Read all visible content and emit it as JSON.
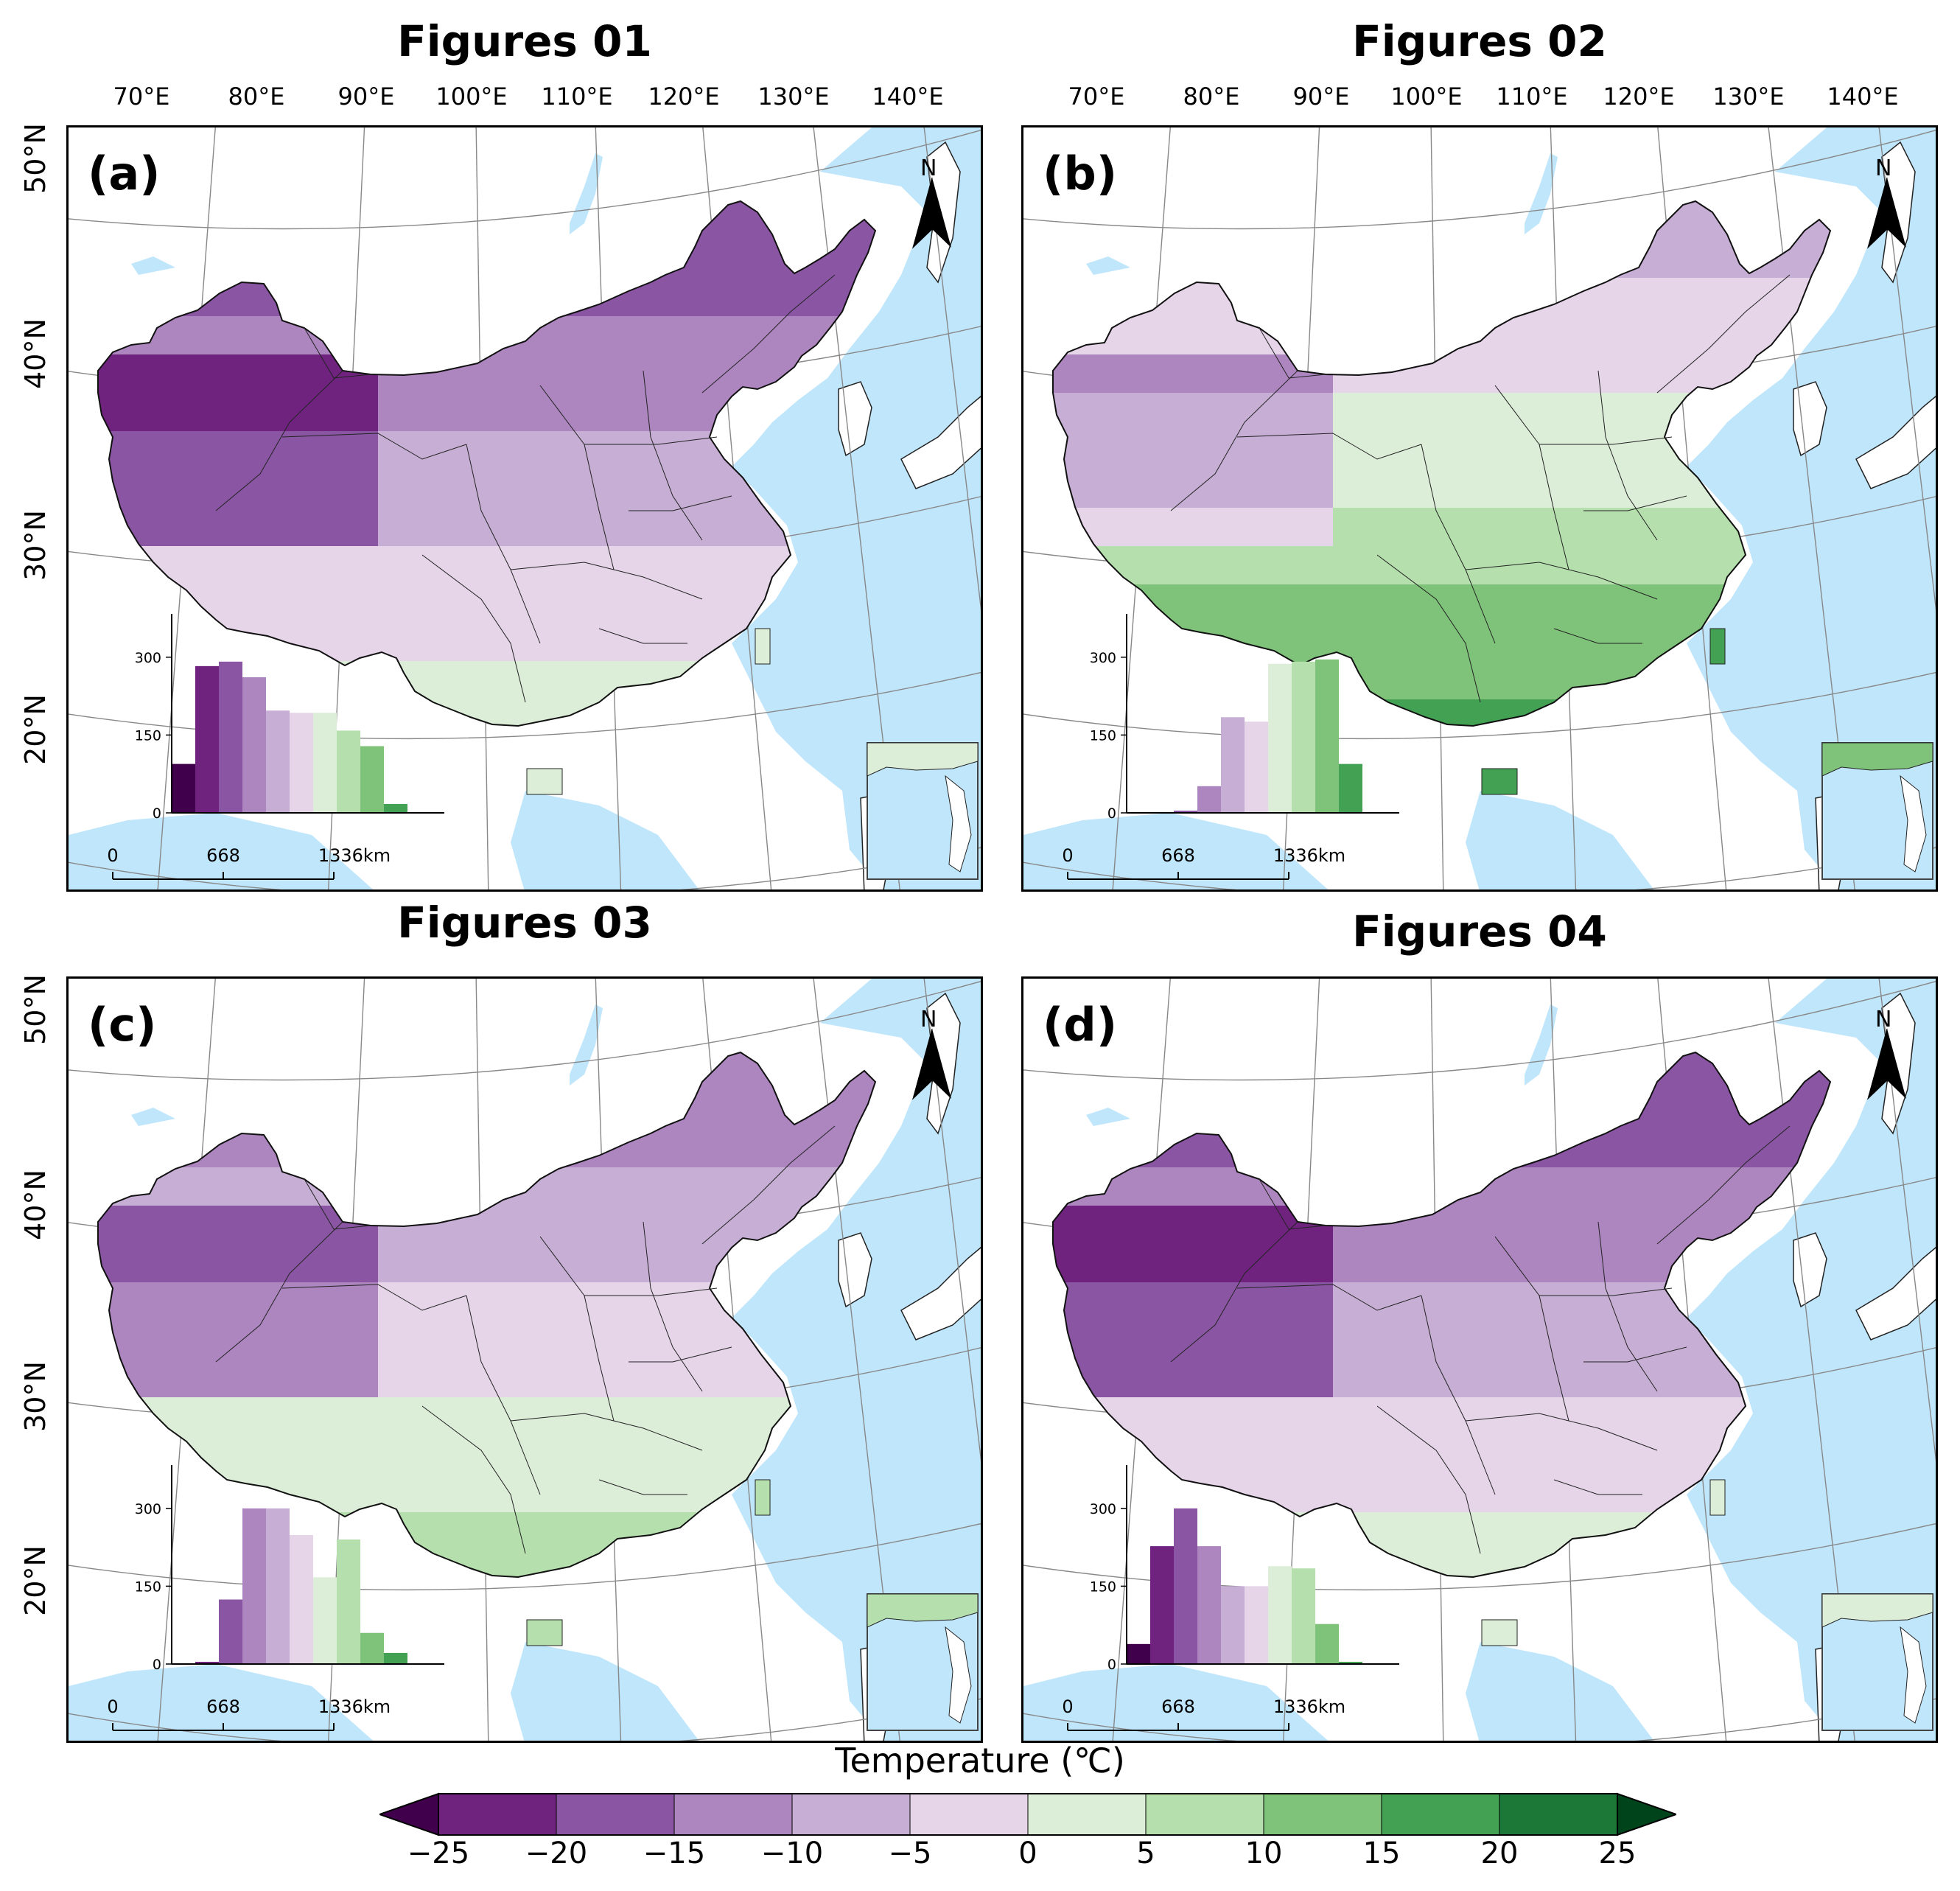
{
  "figures": [
    {
      "title": "Figures 01",
      "label": "(a)",
      "histogram": [
        110,
        330,
        340,
        305,
        230,
        225,
        225,
        185,
        150,
        20,
        0,
        0
      ]
    },
    {
      "title": "Figures 02",
      "label": "(b)",
      "histogram": [
        0,
        0,
        5,
        60,
        215,
        205,
        335,
        340,
        345,
        110,
        0,
        0
      ]
    },
    {
      "title": "Figures 03",
      "label": "(c)",
      "histogram": [
        0,
        5,
        145,
        350,
        350,
        290,
        195,
        280,
        70,
        25,
        0,
        0
      ]
    },
    {
      "title": "Figures 04",
      "label": "(d)",
      "histogram": [
        45,
        265,
        350,
        265,
        175,
        175,
        220,
        215,
        90,
        5,
        0,
        0
      ]
    }
  ],
  "map": {
    "longitude_labels": [
      "70°E",
      "80°E",
      "90°E",
      "100°E",
      "110°E",
      "120°E",
      "130°E",
      "140°E"
    ],
    "latitude_labels": [
      "50°N",
      "40°N",
      "30°N",
      "20°N"
    ],
    "north_label": "N",
    "histogram_yticks": [
      "300",
      "150",
      "0"
    ],
    "scale_bar": [
      "0",
      "668",
      "1336km"
    ]
  },
  "colorbar": {
    "title": "Temperature (℃)",
    "ticks": [
      "−25",
      "−20",
      "−15",
      "−10",
      "−5",
      "0",
      "5",
      "10",
      "15",
      "20",
      "25"
    ],
    "bin_edges": [
      -25,
      -20,
      -15,
      -10,
      -5,
      0,
      5,
      10,
      15,
      20,
      25
    ],
    "colors": [
      "#40004b",
      "#6f237f",
      "#8a56a3",
      "#ad86c0",
      "#c7aed5",
      "#e6d4e9",
      "#dceed8",
      "#b5e0ad",
      "#7fc37a",
      "#42a152",
      "#1b7837",
      "#00441b"
    ]
  },
  "water_color": "#bfe6fb"
}
